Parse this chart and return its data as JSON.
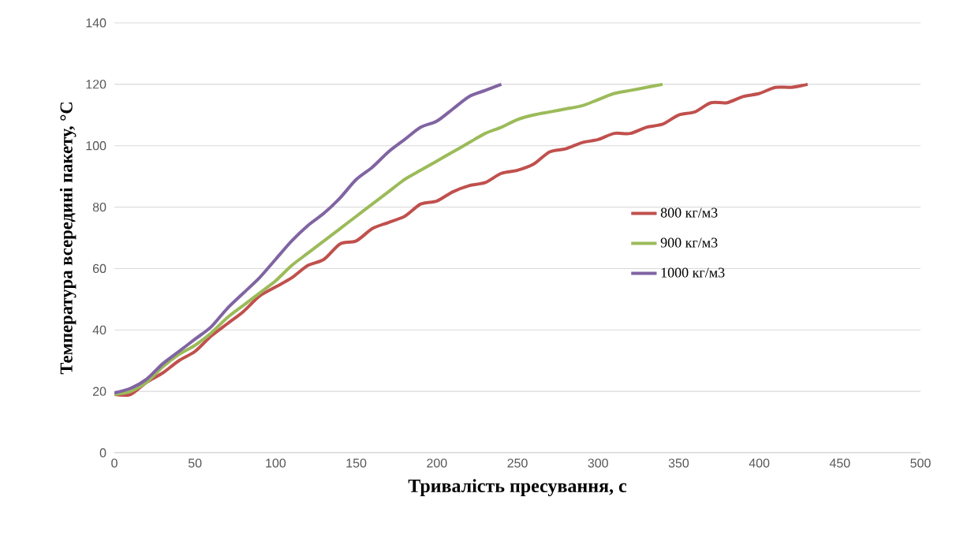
{
  "chart_data": {
    "type": "line",
    "xlabel": "Тривалість  пресування, с",
    "ylabel": "Температура всередині пакету, °С",
    "xlim": [
      0,
      500
    ],
    "ylim": [
      0,
      140
    ],
    "xticks": [
      0,
      50,
      100,
      150,
      200,
      250,
      300,
      350,
      400,
      450,
      500
    ],
    "yticks": [
      0,
      20,
      40,
      60,
      80,
      100,
      120,
      140
    ],
    "grid": "y",
    "legend": "right",
    "marker": "none",
    "line_style": "solid",
    "series": [
      {
        "name": "800  кг/м3",
        "color": "#c0504d",
        "x": [
          0,
          10,
          20,
          30,
          40,
          50,
          60,
          70,
          80,
          90,
          100,
          110,
          120,
          130,
          140,
          150,
          160,
          170,
          180,
          190,
          200,
          210,
          220,
          230,
          240,
          250,
          260,
          270,
          280,
          290,
          300,
          310,
          320,
          330,
          340,
          350,
          360,
          370,
          380,
          390,
          400,
          410,
          420,
          430
        ],
        "values": [
          19,
          19,
          23,
          26,
          30,
          33,
          38,
          42,
          46,
          51,
          54,
          57,
          61,
          63,
          68,
          69,
          73,
          75,
          77,
          81,
          82,
          85,
          87,
          88,
          91,
          92,
          94,
          98,
          99,
          101,
          102,
          104,
          104,
          106,
          107,
          110,
          111,
          114,
          114,
          116,
          117,
          119,
          119,
          120
        ]
      },
      {
        "name": "900  кг/м3",
        "color": "#9bbb59",
        "x": [
          0,
          10,
          20,
          30,
          40,
          50,
          60,
          70,
          80,
          90,
          100,
          110,
          120,
          130,
          140,
          150,
          160,
          170,
          180,
          190,
          200,
          210,
          220,
          230,
          240,
          250,
          260,
          270,
          280,
          290,
          300,
          310,
          320,
          330,
          340
        ],
        "values": [
          19,
          20,
          23,
          28,
          32,
          35,
          39,
          44,
          48,
          52,
          56,
          61,
          65,
          69,
          73,
          77,
          81,
          85,
          89,
          92,
          95,
          98,
          101,
          104,
          106,
          108.5,
          110,
          111,
          112,
          113,
          115,
          117,
          118,
          119,
          120
        ]
      },
      {
        "name": "1000  кг/м3",
        "color": "#8064a2",
        "x": [
          0,
          10,
          20,
          30,
          40,
          50,
          60,
          70,
          80,
          90,
          100,
          110,
          120,
          130,
          140,
          150,
          160,
          170,
          180,
          190,
          200,
          210,
          220,
          230,
          240
        ],
        "values": [
          19.5,
          21,
          24,
          29,
          33,
          37,
          41,
          47,
          52,
          57,
          63,
          69,
          74,
          78,
          83,
          89,
          93,
          98,
          102,
          106,
          108,
          112,
          116,
          118,
          120
        ]
      }
    ]
  }
}
